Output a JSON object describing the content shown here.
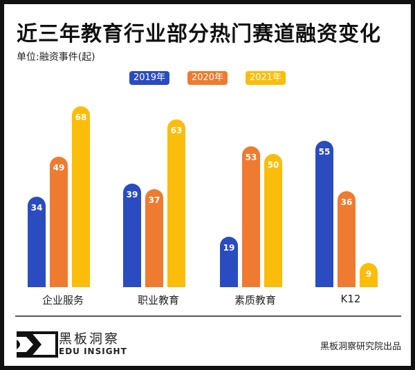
{
  "header": {
    "title": "近三年教育行业部分热门赛道融资变化",
    "unit": "单位:融资事件(起)"
  },
  "legend": [
    {
      "label": "2019年",
      "color": "#2a4cc0"
    },
    {
      "label": "2020年",
      "color": "#ef7b30"
    },
    {
      "label": "2021年",
      "color": "#fbbd0c"
    }
  ],
  "footer": {
    "brand_cn": "黑板洞察",
    "brand_en": "EDU INSIGHT",
    "credit": "黑板洞察研究院出品"
  },
  "chart_data": {
    "type": "bar",
    "title": "近三年教育行业部分热门赛道融资变化",
    "subtitle": "单位:融资事件(起)",
    "xlabel": "",
    "ylabel": "融资事件(起)",
    "categories": [
      "企业服务",
      "职业教育",
      "素质教育",
      "K12"
    ],
    "series": [
      {
        "name": "2019年",
        "color": "#2a4cc0",
        "values": [
          34,
          39,
          19,
          55
        ]
      },
      {
        "name": "2020年",
        "color": "#ef7b30",
        "values": [
          49,
          37,
          53,
          36
        ]
      },
      {
        "name": "2021年",
        "color": "#fbbd0c",
        "values": [
          68,
          63,
          50,
          9
        ]
      }
    ],
    "legend_position": "top",
    "grid": false,
    "data_labels": true
  }
}
